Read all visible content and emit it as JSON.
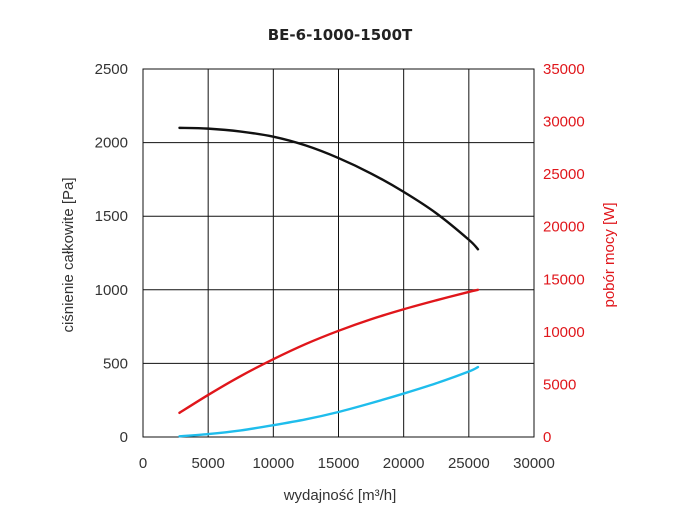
{
  "chart_data": {
    "type": "line",
    "title": "BE-6-1000-1500T",
    "xlabel": "wydajność [m³/h]",
    "ylabel": "ciśnienie całkowite [Pa]",
    "y2label": "pobór mocy [W]",
    "xlim": [
      0,
      30000
    ],
    "ylim": [
      0,
      2500
    ],
    "y2lim": [
      0,
      35000
    ],
    "x_ticks": [
      "0",
      "5000",
      "10000",
      "15000",
      "20000",
      "25000",
      "30000"
    ],
    "y_ticks": [
      "0",
      "500",
      "1000",
      "1500",
      "2000",
      "2500"
    ],
    "y2_ticks": [
      "0",
      "5000",
      "10000",
      "15000",
      "20000",
      "25000",
      "30000",
      "35000"
    ],
    "grid": true,
    "series": [
      {
        "axis": "left",
        "color": "#111111",
        "x": [
          2800,
          5000,
          7500,
          10000,
          12500,
          15000,
          17500,
          20000,
          22500,
          25000,
          25700
        ],
        "y": [
          2100,
          2095,
          2075,
          2040,
          1980,
          1895,
          1790,
          1665,
          1520,
          1340,
          1275
        ]
      },
      {
        "axis": "right",
        "color": "#e0161b",
        "x": [
          2800,
          5000,
          7500,
          10000,
          12500,
          15000,
          17500,
          20000,
          22500,
          25000,
          25700
        ],
        "y": [
          2300,
          4000,
          5800,
          7400,
          8850,
          10100,
          11200,
          12150,
          13000,
          13800,
          14000
        ]
      },
      {
        "axis": "left",
        "color": "#1fbdec",
        "x": [
          2800,
          5000,
          7500,
          10000,
          12500,
          15000,
          17500,
          20000,
          22500,
          25000,
          25700
        ],
        "y": [
          5,
          20,
          45,
          80,
          120,
          170,
          230,
          295,
          365,
          445,
          475
        ]
      }
    ]
  }
}
